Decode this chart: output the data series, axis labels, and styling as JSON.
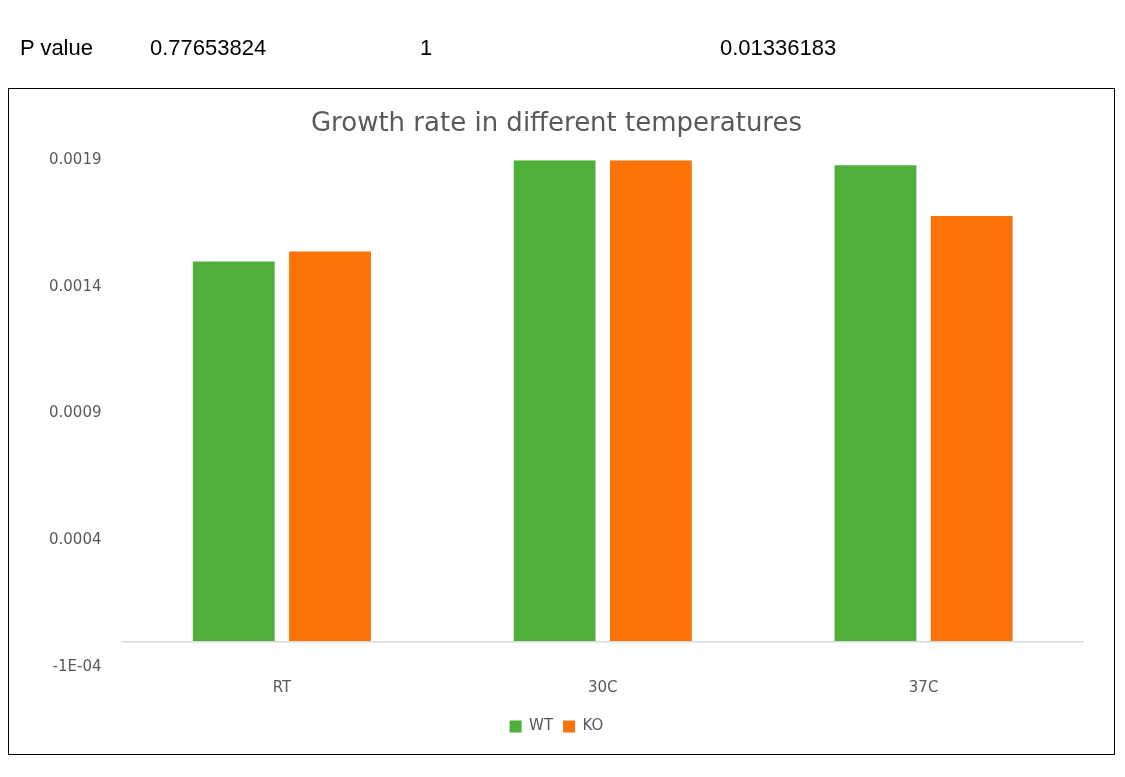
{
  "chart_data": {
    "type": "bar",
    "title": "Growth rate in different temperatures",
    "categories": [
      "RT",
      "30C",
      "37C"
    ],
    "series": [
      {
        "name": "WT",
        "color": "#4eb03a",
        "values": [
          0.0015,
          0.0019,
          0.00188
        ]
      },
      {
        "name": "KO",
        "color": "#fb7307",
        "values": [
          0.00154,
          0.0019,
          0.00168
        ]
      }
    ],
    "ylim": [
      -0.0001,
      0.0019
    ],
    "yticks": [
      {
        "value": -0.0001,
        "label": "-1E-04"
      },
      0.0004,
      0.0009,
      0.0014,
      0.0019
    ],
    "grid": false,
    "legend": "bottom",
    "annotations": [
      "P value",
      "0.77653824",
      "1",
      "0.01336183"
    ]
  }
}
